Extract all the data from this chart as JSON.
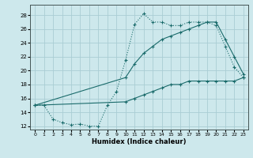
{
  "xlabel": "Humidex (Indice chaleur)",
  "xlim": [
    -0.5,
    23.5
  ],
  "ylim": [
    11.5,
    29.5
  ],
  "xticks": [
    0,
    1,
    2,
    3,
    4,
    5,
    6,
    7,
    8,
    9,
    10,
    11,
    12,
    13,
    14,
    15,
    16,
    17,
    18,
    19,
    20,
    21,
    22,
    23
  ],
  "yticks": [
    12,
    14,
    16,
    18,
    20,
    22,
    24,
    26,
    28
  ],
  "bg_color": "#cde8ec",
  "line_color": "#1a6b6b",
  "grid_color": "#aacdd4",
  "line1_x": [
    0,
    1,
    2,
    3,
    4,
    5,
    6,
    7,
    8,
    9,
    10,
    11,
    12,
    13,
    14,
    15,
    16,
    17,
    18,
    19,
    20,
    21,
    22,
    23
  ],
  "line1_y": [
    15,
    15,
    13,
    12.5,
    12.2,
    12.3,
    12.0,
    12.0,
    15.0,
    17.0,
    21.5,
    26.7,
    28.2,
    27.0,
    27.0,
    26.5,
    26.5,
    27.0,
    27.0,
    27.0,
    26.5,
    23.5,
    20.5,
    19.0
  ],
  "line2_x": [
    0,
    10,
    11,
    12,
    13,
    14,
    15,
    16,
    17,
    18,
    19,
    20,
    21,
    22,
    23
  ],
  "line2_y": [
    15,
    19.0,
    21.0,
    22.5,
    23.5,
    24.5,
    25.0,
    25.5,
    26.0,
    26.5,
    27.0,
    27.0,
    24.5,
    22.0,
    19.5
  ],
  "line3_x": [
    0,
    10,
    11,
    12,
    13,
    14,
    15,
    16,
    17,
    18,
    19,
    20,
    21,
    22,
    23
  ],
  "line3_y": [
    15,
    15.5,
    16.0,
    16.5,
    17.0,
    17.5,
    18.0,
    18.0,
    18.5,
    18.5,
    18.5,
    18.5,
    18.5,
    18.5,
    19.0
  ]
}
